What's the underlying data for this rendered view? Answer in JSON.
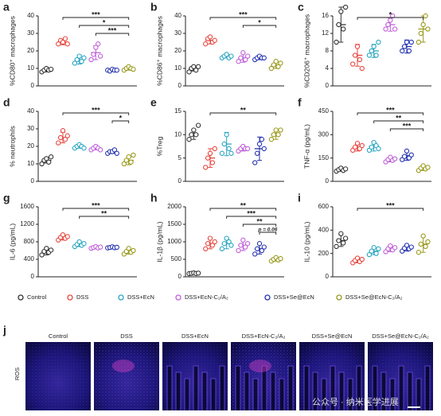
{
  "chart_data": [
    {
      "type": "dotplot",
      "panel": "a",
      "ylabel": "%CD80⁺ macrophages",
      "ylim": [
        0,
        40
      ],
      "yticks": [
        0,
        10,
        20,
        30,
        40
      ],
      "points": [
        [
          8,
          9,
          10,
          9,
          9.5
        ],
        [
          24,
          26,
          25,
          27,
          24
        ],
        [
          13,
          15,
          17,
          14,
          16
        ],
        [
          15,
          18,
          22,
          24,
          17
        ],
        [
          9,
          8.5,
          9.5,
          9,
          9
        ],
        [
          9,
          10,
          11,
          10,
          9.5
        ]
      ],
      "mean": [
        9,
        25,
        15,
        19,
        9,
        10
      ],
      "sd": [
        1,
        1.5,
        2.5,
        4,
        0.5,
        1
      ],
      "annotations": [
        {
          "text": "***",
          "from": 1,
          "to": 5
        },
        {
          "text": "*",
          "from": 2,
          "to": 5
        },
        {
          "text": "***",
          "from": 3,
          "to": 5
        }
      ]
    },
    {
      "type": "dotplot",
      "panel": "b",
      "ylabel": "%CD86⁺ macrophages",
      "ylim": [
        0,
        40
      ],
      "yticks": [
        0,
        10,
        20,
        30,
        40
      ],
      "points": [
        [
          8,
          10,
          11,
          9,
          11
        ],
        [
          24,
          27,
          28,
          25,
          26
        ],
        [
          16,
          17,
          18,
          16,
          17
        ],
        [
          14,
          16,
          19,
          15,
          17
        ],
        [
          15,
          16,
          17,
          16,
          16
        ],
        [
          10,
          12,
          14,
          11,
          13
        ]
      ],
      "mean": [
        10,
        26,
        17,
        16,
        16,
        12
      ],
      "sd": [
        1.5,
        2,
        1,
        2.5,
        1,
        2
      ],
      "annotations": [
        {
          "text": "***",
          "from": 1,
          "to": 5
        },
        {
          "text": "*",
          "from": 3,
          "to": 5
        }
      ]
    },
    {
      "type": "dotplot",
      "panel": "c",
      "ylabel": "%CD206⁺ macrophages",
      "ylim": [
        0,
        16
      ],
      "yticks": [
        0,
        4,
        8,
        12,
        16
      ],
      "points": [
        [
          10,
          14,
          17,
          13,
          18
        ],
        [
          5,
          7,
          9,
          6,
          4
        ],
        [
          7,
          8,
          9,
          7,
          10
        ],
        [
          13,
          14,
          15,
          16,
          13
        ],
        [
          8,
          9,
          10,
          8,
          10
        ],
        [
          10,
          12,
          14,
          16,
          13
        ]
      ],
      "mean": [
        14,
        7,
        8,
        14,
        9,
        13
      ],
      "sd": [
        4,
        2.5,
        1.5,
        1.5,
        1.5,
        3
      ],
      "annotations": [
        {
          "text": "*",
          "from": 1,
          "to": 5
        }
      ]
    },
    {
      "type": "dotplot",
      "panel": "d",
      "ylabel": "% neutrophils",
      "ylim": [
        0,
        40
      ],
      "yticks": [
        0,
        10,
        20,
        30,
        40
      ],
      "points": [
        [
          10,
          12,
          13,
          11,
          14
        ],
        [
          22,
          25,
          29,
          24,
          26
        ],
        [
          19,
          20,
          21,
          20,
          19
        ],
        [
          18,
          19,
          20,
          19,
          18
        ],
        [
          16,
          17,
          17,
          18,
          16
        ],
        [
          10,
          12,
          14,
          11,
          15
        ]
      ],
      "mean": [
        12,
        25,
        20,
        19,
        17,
        12
      ],
      "sd": [
        1.5,
        3,
        1,
        1,
        1,
        2.5
      ],
      "annotations": [
        {
          "text": "***",
          "from": 1,
          "to": 5
        },
        {
          "text": "*",
          "from": 4,
          "to": 5
        }
      ]
    },
    {
      "type": "dotplot",
      "panel": "e",
      "ylabel": "%Treg",
      "ylim": [
        0,
        15
      ],
      "yticks": [
        0,
        5,
        10,
        15
      ],
      "points": [
        [
          9,
          10,
          11,
          10,
          12
        ],
        [
          3,
          5,
          6,
          4,
          7
        ],
        [
          6,
          8,
          10,
          7,
          6
        ],
        [
          6.5,
          7,
          7.5,
          7,
          7
        ],
        [
          4,
          6,
          8,
          9,
          7
        ],
        [
          9,
          10,
          11,
          10,
          11
        ]
      ],
      "mean": [
        10,
        5,
        8,
        7,
        7,
        10
      ],
      "sd": [
        1,
        2,
        2.5,
        0.5,
        2.5,
        1
      ],
      "annotations": [
        {
          "text": "**",
          "from": 1,
          "to": 5
        }
      ]
    },
    {
      "type": "dotplot",
      "panel": "f",
      "ylabel": "TNF-α (pg/mL)",
      "ylim": [
        0,
        450
      ],
      "yticks": [
        0,
        150,
        300,
        450
      ],
      "points": [
        [
          65,
          75,
          85,
          70,
          80
        ],
        [
          200,
          220,
          245,
          210,
          230
        ],
        [
          200,
          220,
          250,
          230,
          210
        ],
        [
          125,
          140,
          155,
          135,
          145
        ],
        [
          140,
          160,
          195,
          150,
          170
        ],
        [
          70,
          85,
          100,
          80,
          90
        ]
      ],
      "mean": [
        75,
        220,
        225,
        140,
        165,
        85
      ],
      "sd": [
        10,
        25,
        30,
        15,
        30,
        15
      ],
      "annotations": [
        {
          "text": "***",
          "from": 1,
          "to": 5
        },
        {
          "text": "**",
          "from": 2,
          "to": 5
        },
        {
          "text": "***",
          "from": 3,
          "to": 5
        }
      ]
    },
    {
      "type": "dotplot",
      "panel": "g",
      "ylabel": "IL-6 (pg/mL)",
      "ylim": [
        0,
        1600
      ],
      "yticks": [
        0,
        400,
        800,
        1200,
        1600
      ],
      "points": [
        [
          500,
          580,
          650,
          560,
          610
        ],
        [
          840,
          900,
          960,
          880,
          920
        ],
        [
          690,
          740,
          800,
          720,
          760
        ],
        [
          650,
          670,
          690,
          660,
          680
        ],
        [
          660,
          670,
          685,
          665,
          675
        ],
        [
          520,
          580,
          650,
          560,
          600
        ]
      ],
      "mean": [
        580,
        900,
        740,
        670,
        670,
        580
      ],
      "sd": [
        80,
        60,
        50,
        20,
        15,
        60
      ],
      "annotations": [
        {
          "text": "***",
          "from": 1,
          "to": 5
        },
        {
          "text": "**",
          "from": 2,
          "to": 5
        }
      ]
    },
    {
      "type": "dotplot",
      "panel": "h",
      "ylabel": "IL-1β (pg/mL)",
      "ylim": [
        0,
        2000
      ],
      "yticks": [
        0,
        500,
        1000,
        1500,
        2000
      ],
      "points": [
        [
          90,
          100,
          110,
          95,
          105
        ],
        [
          800,
          950,
          1100,
          900,
          1000
        ],
        [
          800,
          950,
          1100,
          1000,
          900
        ],
        [
          750,
          900,
          1050,
          850,
          950
        ],
        [
          650,
          800,
          950,
          750,
          850
        ],
        [
          450,
          500,
          550,
          480,
          520
        ]
      ],
      "mean": [
        100,
        950,
        950,
        900,
        800,
        500
      ],
      "sd": [
        15,
        150,
        150,
        150,
        150,
        50
      ],
      "annotations": [
        {
          "text": "**",
          "from": 1,
          "to": 5
        },
        {
          "text": "***",
          "from": 2,
          "to": 5
        },
        {
          "text": "**",
          "from": 3,
          "to": 5
        },
        {
          "text": "p = 0.06",
          "from": 4,
          "to": 5
        }
      ]
    },
    {
      "type": "dotplot",
      "panel": "i",
      "ylabel": "IL-10 (pg/mL)",
      "ylim": [
        0,
        600
      ],
      "yticks": [
        0,
        200,
        400,
        600
      ],
      "points": [
        [
          260,
          310,
          370,
          290,
          330
        ],
        [
          120,
          140,
          160,
          130,
          150
        ],
        [
          190,
          220,
          250,
          200,
          240
        ],
        [
          215,
          240,
          265,
          230,
          250
        ],
        [
          220,
          245,
          270,
          240,
          255
        ],
        [
          210,
          280,
          350,
          260,
          300
        ]
      ],
      "mean": [
        310,
        140,
        220,
        240,
        245,
        280
      ],
      "sd": [
        50,
        20,
        30,
        25,
        25,
        70
      ],
      "annotations": [
        {
          "text": "***",
          "from": 1,
          "to": 5
        }
      ]
    }
  ],
  "legend": [
    {
      "name": "Control",
      "color": "#333333"
    },
    {
      "name": "DSS",
      "color": "#e8463f"
    },
    {
      "name": "DSS+EcN",
      "color": "#2aa6c0"
    },
    {
      "name": "DSS+EcN-C₂/A₂",
      "color": "#c060d8"
    },
    {
      "name": "DSS+Se@EcN",
      "color": "#2533b0"
    },
    {
      "name": "DSS+Se@EcN-C₂/A₂",
      "color": "#9a9a1e"
    }
  ],
  "images": {
    "panel": "j",
    "row_label": "ROS",
    "titles": [
      "Control",
      "DSS",
      "DSS+EcN",
      "DSS+EcN-C₂/A₂",
      "DSS+Se@EcN",
      "DSS+Se@EcN-C₂/A₂"
    ],
    "watermark": "公众号 · 纳米医学进展"
  }
}
